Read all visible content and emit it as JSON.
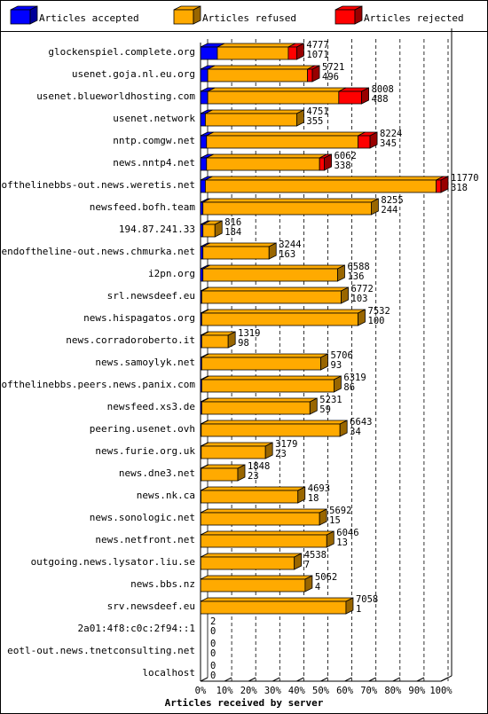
{
  "chart_data": {
    "type": "bar",
    "orientation": "horizontal",
    "stacked": true,
    "xlabel": "Articles received by server",
    "x_ticks": [
      "0%",
      "10%",
      "20%",
      "30%",
      "40%",
      "50%",
      "60%",
      "70%",
      "80%",
      "90%",
      "100%"
    ],
    "xlim_percent": [
      0,
      100
    ],
    "grid": true,
    "legend_position": "top",
    "series": [
      {
        "name": "Articles accepted",
        "color": "#0000ff"
      },
      {
        "name": "Articles refused",
        "color": "#ffaa00"
      },
      {
        "name": "Articles rejected",
        "color": "#ff0000"
      }
    ],
    "rows": [
      {
        "server": "glockenspiel.complete.org",
        "accepted_pct": 7.0,
        "refused_pct": 29.5,
        "rejected_pct": 3.5,
        "label_top": "4777",
        "label_bottom": "1071"
      },
      {
        "server": "usenet.goja.nl.eu.org",
        "accepted_pct": 3.0,
        "refused_pct": 41.5,
        "rejected_pct": 2.0,
        "label_top": "5721",
        "label_bottom": "496"
      },
      {
        "server": "usenet.blueworldhosting.com",
        "accepted_pct": 3.0,
        "refused_pct": 54.5,
        "rejected_pct": 9.5,
        "label_top": "8008",
        "label_bottom": "488"
      },
      {
        "server": "usenet.network",
        "accepted_pct": 2.0,
        "refused_pct": 38.0,
        "rejected_pct": 0.0,
        "label_top": "4751",
        "label_bottom": "355"
      },
      {
        "server": "nntp.comgw.net",
        "accepted_pct": 2.5,
        "refused_pct": 63.0,
        "rejected_pct": 5.0,
        "label_top": "8224",
        "label_bottom": "345"
      },
      {
        "server": "news.nntp4.net",
        "accepted_pct": 2.5,
        "refused_pct": 47.0,
        "rejected_pct": 2.0,
        "label_top": "6062",
        "label_bottom": "338"
      },
      {
        "server": "endofthelinebbs-out.news.weretis.net",
        "accepted_pct": 2.0,
        "refused_pct": 96.0,
        "rejected_pct": 2.0,
        "label_top": "11770",
        "label_bottom": "318"
      },
      {
        "server": "newsfeed.bofh.team",
        "accepted_pct": 1.0,
        "refused_pct": 70.0,
        "rejected_pct": 0.0,
        "label_top": "8255",
        "label_bottom": "244"
      },
      {
        "server": "194.87.241.33",
        "accepted_pct": 1.0,
        "refused_pct": 5.0,
        "rejected_pct": 0.0,
        "label_top": "816",
        "label_bottom": "184"
      },
      {
        "server": "endoftheline-out.news.chmurka.net",
        "accepted_pct": 1.0,
        "refused_pct": 27.5,
        "rejected_pct": 0.0,
        "label_top": "3244",
        "label_bottom": "163"
      },
      {
        "server": "i2pn.org",
        "accepted_pct": 1.0,
        "refused_pct": 56.0,
        "rejected_pct": 0.0,
        "label_top": "6588",
        "label_bottom": "136"
      },
      {
        "server": "srl.newsdeef.eu",
        "accepted_pct": 0.5,
        "refused_pct": 58.0,
        "rejected_pct": 0.0,
        "label_top": "6772",
        "label_bottom": "103"
      },
      {
        "server": "news.hispagatos.org",
        "accepted_pct": 0.5,
        "refused_pct": 65.0,
        "rejected_pct": 0.0,
        "label_top": "7532",
        "label_bottom": "100"
      },
      {
        "server": "news.corradoroberto.it",
        "accepted_pct": 0.5,
        "refused_pct": 11.0,
        "rejected_pct": 0.0,
        "label_top": "1319",
        "label_bottom": "98"
      },
      {
        "server": "news.samoylyk.net",
        "accepted_pct": 0.5,
        "refused_pct": 49.5,
        "rejected_pct": 0.0,
        "label_top": "5706",
        "label_bottom": "93"
      },
      {
        "server": "endofthelinebbs.peers.news.panix.com",
        "accepted_pct": 0.5,
        "refused_pct": 55.0,
        "rejected_pct": 0.0,
        "label_top": "6319",
        "label_bottom": "86"
      },
      {
        "server": "newsfeed.xs3.de",
        "accepted_pct": 0.5,
        "refused_pct": 45.0,
        "rejected_pct": 0.0,
        "label_top": "5231",
        "label_bottom": "59"
      },
      {
        "server": "peering.usenet.ovh",
        "accepted_pct": 0.3,
        "refused_pct": 57.7,
        "rejected_pct": 0.0,
        "label_top": "6643",
        "label_bottom": "34"
      },
      {
        "server": "news.furie.org.uk",
        "accepted_pct": 0.3,
        "refused_pct": 26.7,
        "rejected_pct": 0.0,
        "label_top": "3179",
        "label_bottom": "23"
      },
      {
        "server": "news.dne3.net",
        "accepted_pct": 0.3,
        "refused_pct": 15.2,
        "rejected_pct": 0.0,
        "label_top": "1848",
        "label_bottom": "23"
      },
      {
        "server": "news.nk.ca",
        "accepted_pct": 0.2,
        "refused_pct": 40.3,
        "rejected_pct": 0.0,
        "label_top": "4693",
        "label_bottom": "18"
      },
      {
        "server": "news.sonologic.net",
        "accepted_pct": 0.1,
        "refused_pct": 49.4,
        "rejected_pct": 0.0,
        "label_top": "5692",
        "label_bottom": "15"
      },
      {
        "server": "news.netfront.net",
        "accepted_pct": 0.1,
        "refused_pct": 52.4,
        "rejected_pct": 0.0,
        "label_top": "6046",
        "label_bottom": "13"
      },
      {
        "server": "outgoing.news.lysator.liu.se",
        "accepted_pct": 0.1,
        "refused_pct": 38.9,
        "rejected_pct": 0.0,
        "label_top": "4538",
        "label_bottom": "7"
      },
      {
        "server": "news.bbs.nz",
        "accepted_pct": 0.0,
        "refused_pct": 43.5,
        "rejected_pct": 0.0,
        "label_top": "5062",
        "label_bottom": "4"
      },
      {
        "server": "srv.newsdeef.eu",
        "accepted_pct": 0.0,
        "refused_pct": 60.5,
        "rejected_pct": 0.0,
        "label_top": "7058",
        "label_bottom": "1"
      },
      {
        "server": "2a01:4f8:c0c:2f94::1",
        "accepted_pct": 0.0,
        "refused_pct": 0.0,
        "rejected_pct": 0.0,
        "label_top": "2",
        "label_bottom": "0"
      },
      {
        "server": "eotl-out.news.tnetconsulting.net",
        "accepted_pct": 0.0,
        "refused_pct": 0.0,
        "rejected_pct": 0.0,
        "label_top": "0",
        "label_bottom": "0"
      },
      {
        "server": "localhost",
        "accepted_pct": 0.0,
        "refused_pct": 0.0,
        "rejected_pct": 0.0,
        "label_top": "0",
        "label_bottom": "0"
      }
    ]
  }
}
